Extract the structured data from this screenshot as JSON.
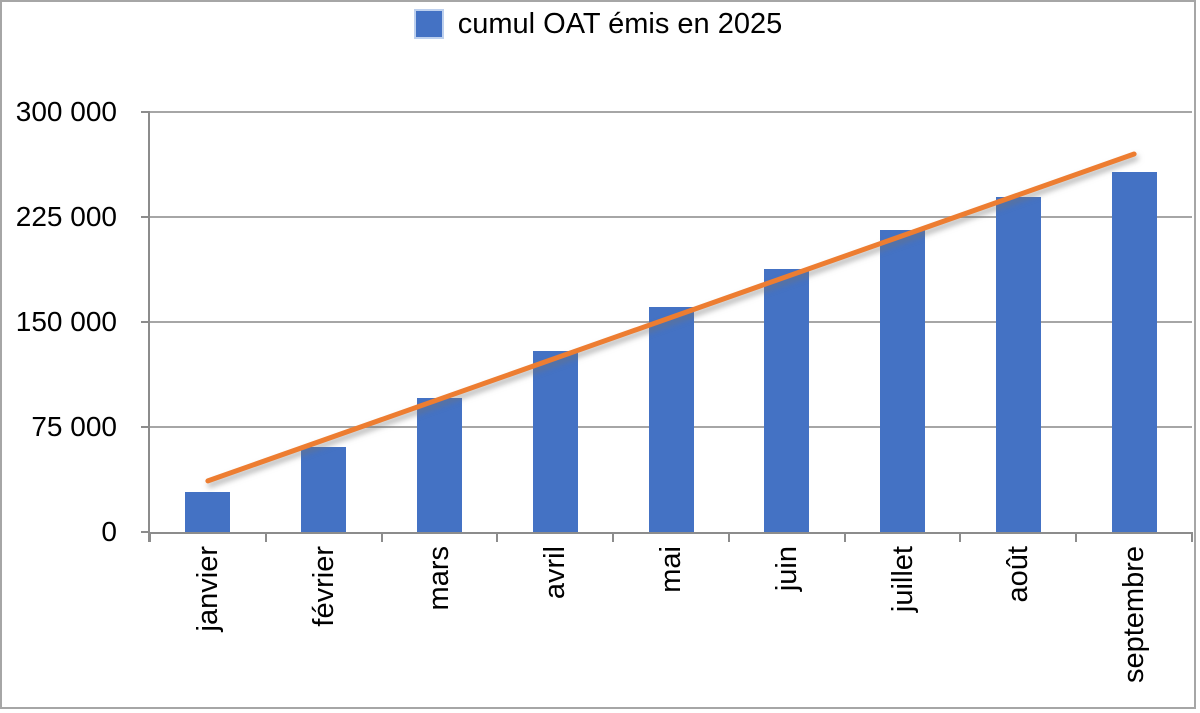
{
  "frame": {
    "background": "#FFFFFF",
    "border_color": "#A6A6A6"
  },
  "chart_data": {
    "type": "bar",
    "legend_position": "top",
    "categories": [
      "janvier",
      "février",
      "mars",
      "avril",
      "mai",
      "juin",
      "juillet",
      "août",
      "septembre"
    ],
    "series": [
      {
        "name": "cumul OAT émis en 2025",
        "type": "bar",
        "color": "#4472C4",
        "values": [
          28500,
          61000,
          96000,
          129000,
          160500,
          188000,
          215500,
          239000,
          257000
        ]
      }
    ],
    "trendline": {
      "shape": "linear",
      "color": "#ED7D31",
      "start_category": "janvier",
      "start_value": 36500,
      "end_category": "septembre",
      "end_value": 270000
    },
    "y_axis": {
      "min": 0,
      "max": 300000,
      "tick_interval": 75000,
      "tick_labels": [
        "0",
        "75 000",
        "150 000",
        "225 000",
        "300 000"
      ]
    },
    "x_axis": {
      "tick_labels_rotation_degrees": -90
    },
    "gridlines": true,
    "colors": {
      "bar": "#4472C4",
      "trendline": "#ED7D31",
      "gridline": "#A6A6A6",
      "axis": "#8C8C8C",
      "text": "#000000",
      "legend_swatch_border": "#BDD0EE"
    }
  }
}
